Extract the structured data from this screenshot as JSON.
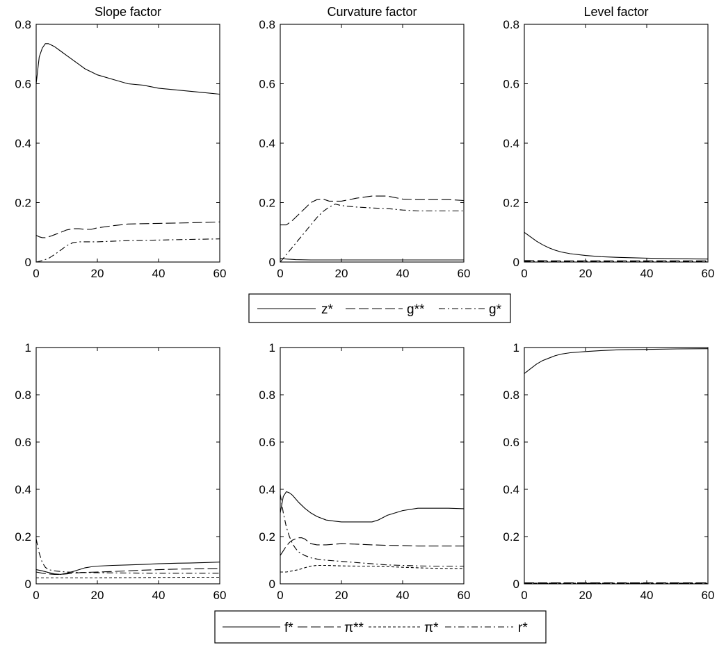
{
  "chart_data": [
    {
      "type": "line",
      "title": "Slope factor",
      "xlim": [
        0,
        60
      ],
      "ylim": [
        0,
        0.8
      ],
      "xticks": [
        "0",
        "20",
        "40",
        "60"
      ],
      "yticks": [
        "0",
        "0.2",
        "0.4",
        "0.6",
        "0.8"
      ],
      "grid": false,
      "series": [
        {
          "name": "z*",
          "dash": "solid",
          "x": [
            0,
            1,
            2,
            3,
            4,
            5,
            6,
            8,
            10,
            12,
            14,
            16,
            18,
            20,
            25,
            30,
            35,
            40,
            45,
            50,
            55,
            60
          ],
          "y": [
            0.6,
            0.69,
            0.72,
            0.735,
            0.735,
            0.73,
            0.725,
            0.71,
            0.695,
            0.68,
            0.665,
            0.65,
            0.64,
            0.63,
            0.615,
            0.6,
            0.595,
            0.585,
            0.58,
            0.575,
            0.57,
            0.565
          ]
        },
        {
          "name": "g**",
          "dash": "longdash",
          "x": [
            0,
            1,
            2,
            3,
            4,
            5,
            6,
            8,
            10,
            12,
            14,
            16,
            18,
            20,
            25,
            30,
            40,
            50,
            60
          ],
          "y": [
            0.09,
            0.085,
            0.082,
            0.082,
            0.085,
            0.088,
            0.092,
            0.1,
            0.108,
            0.112,
            0.112,
            0.11,
            0.11,
            0.115,
            0.122,
            0.128,
            0.13,
            0.132,
            0.135
          ]
        },
        {
          "name": "g*",
          "dash": "dashdot",
          "x": [
            0,
            2,
            4,
            6,
            8,
            10,
            12,
            14,
            20,
            30,
            40,
            50,
            60
          ],
          "y": [
            0.0,
            0.005,
            0.012,
            0.025,
            0.04,
            0.055,
            0.065,
            0.068,
            0.068,
            0.072,
            0.074,
            0.076,
            0.078
          ]
        }
      ]
    },
    {
      "type": "line",
      "title": "Curvature factor",
      "xlim": [
        0,
        60
      ],
      "ylim": [
        0,
        0.8
      ],
      "xticks": [
        "0",
        "20",
        "40",
        "60"
      ],
      "yticks": [
        "0",
        "0.2",
        "0.4",
        "0.6",
        "0.8"
      ],
      "grid": false,
      "series": [
        {
          "name": "z*",
          "dash": "solid",
          "x": [
            0,
            2,
            5,
            10,
            20,
            30,
            40,
            50,
            60
          ],
          "y": [
            0.012,
            0.01,
            0.008,
            0.007,
            0.007,
            0.007,
            0.007,
            0.007,
            0.007
          ]
        },
        {
          "name": "g**",
          "dash": "longdash",
          "x": [
            0,
            2,
            4,
            6,
            8,
            10,
            12,
            14,
            16,
            20,
            25,
            30,
            35,
            40,
            45,
            50,
            55,
            60
          ],
          "y": [
            0.125,
            0.125,
            0.14,
            0.16,
            0.18,
            0.2,
            0.21,
            0.212,
            0.205,
            0.205,
            0.215,
            0.222,
            0.222,
            0.212,
            0.21,
            0.21,
            0.21,
            0.207
          ]
        },
        {
          "name": "g*",
          "dash": "dashdot",
          "x": [
            0,
            2,
            4,
            6,
            8,
            10,
            12,
            14,
            16,
            18,
            20,
            25,
            30,
            35,
            40,
            45,
            50,
            55,
            60
          ],
          "y": [
            0.0,
            0.025,
            0.05,
            0.075,
            0.1,
            0.125,
            0.15,
            0.17,
            0.185,
            0.195,
            0.19,
            0.185,
            0.182,
            0.18,
            0.175,
            0.172,
            0.172,
            0.172,
            0.172
          ]
        }
      ]
    },
    {
      "type": "line",
      "title": "Level factor",
      "xlim": [
        0,
        60
      ],
      "ylim": [
        0,
        0.8
      ],
      "xticks": [
        "0",
        "20",
        "40",
        "60"
      ],
      "yticks": [
        "0",
        "0.2",
        "0.4",
        "0.6",
        "0.8"
      ],
      "grid": false,
      "series": [
        {
          "name": "z*",
          "dash": "solid",
          "x": [
            0,
            2,
            4,
            6,
            8,
            10,
            12,
            15,
            20,
            25,
            30,
            40,
            50,
            60
          ],
          "y": [
            0.1,
            0.085,
            0.07,
            0.058,
            0.048,
            0.04,
            0.034,
            0.028,
            0.022,
            0.018,
            0.016,
            0.013,
            0.011,
            0.01
          ]
        },
        {
          "name": "g**",
          "dash": "longdash",
          "x": [
            0,
            10,
            20,
            30,
            40,
            50,
            60
          ],
          "y": [
            0.005,
            0.004,
            0.004,
            0.004,
            0.004,
            0.004,
            0.004
          ]
        },
        {
          "name": "g*",
          "dash": "dashdot",
          "x": [
            0,
            10,
            20,
            30,
            40,
            50,
            60
          ],
          "y": [
            0.002,
            0.002,
            0.002,
            0.002,
            0.002,
            0.002,
            0.002
          ]
        }
      ]
    },
    {
      "type": "line",
      "title": "",
      "xlim": [
        0,
        60
      ],
      "ylim": [
        0,
        1
      ],
      "xticks": [
        "0",
        "20",
        "40",
        "60"
      ],
      "yticks": [
        "0",
        "0.2",
        "0.4",
        "0.6",
        "0.8",
        "1"
      ],
      "grid": false,
      "series": [
        {
          "name": "f*",
          "dash": "solid",
          "x": [
            0,
            2,
            4,
            6,
            8,
            10,
            12,
            14,
            16,
            18,
            20,
            25,
            30,
            35,
            40,
            45,
            50,
            55,
            60
          ],
          "y": [
            0.06,
            0.055,
            0.048,
            0.042,
            0.04,
            0.045,
            0.052,
            0.06,
            0.068,
            0.072,
            0.075,
            0.078,
            0.08,
            0.082,
            0.085,
            0.087,
            0.088,
            0.09,
            0.092
          ]
        },
        {
          "name": "π**",
          "dash": "longdash",
          "x": [
            0,
            2,
            4,
            6,
            8,
            10,
            12,
            15,
            20,
            25,
            30,
            35,
            40,
            45,
            50,
            55,
            60
          ],
          "y": [
            0.05,
            0.045,
            0.042,
            0.04,
            0.04,
            0.042,
            0.045,
            0.048,
            0.05,
            0.052,
            0.055,
            0.058,
            0.06,
            0.062,
            0.063,
            0.064,
            0.065
          ]
        },
        {
          "name": "π*",
          "dash": "shortdash",
          "x": [
            0,
            2,
            5,
            10,
            20,
            30,
            40,
            50,
            60
          ],
          "y": [
            0.025,
            0.025,
            0.025,
            0.025,
            0.025,
            0.026,
            0.027,
            0.028,
            0.028
          ]
        },
        {
          "name": "r*",
          "dash": "dashdot",
          "x": [
            0,
            1,
            2,
            3,
            4,
            6,
            8,
            10,
            15,
            20,
            30,
            40,
            50,
            60
          ],
          "y": [
            0.19,
            0.13,
            0.09,
            0.07,
            0.06,
            0.055,
            0.052,
            0.05,
            0.048,
            0.047,
            0.046,
            0.045,
            0.045,
            0.045
          ]
        }
      ]
    },
    {
      "type": "line",
      "title": "",
      "xlim": [
        0,
        60
      ],
      "ylim": [
        0,
        1
      ],
      "xticks": [
        "0",
        "20",
        "40",
        "60"
      ],
      "yticks": [
        "0",
        "0.2",
        "0.4",
        "0.6",
        "0.8",
        "1"
      ],
      "grid": false,
      "series": [
        {
          "name": "f*",
          "dash": "solid",
          "x": [
            0,
            1,
            2,
            3,
            4,
            5,
            6,
            8,
            10,
            12,
            15,
            18,
            20,
            25,
            30,
            32,
            35,
            40,
            45,
            50,
            55,
            60
          ],
          "y": [
            0.3,
            0.37,
            0.39,
            0.385,
            0.375,
            0.36,
            0.345,
            0.32,
            0.3,
            0.285,
            0.27,
            0.265,
            0.262,
            0.262,
            0.262,
            0.27,
            0.29,
            0.31,
            0.32,
            0.32,
            0.32,
            0.318
          ]
        },
        {
          "name": "π**",
          "dash": "longdash",
          "x": [
            0,
            1,
            2,
            3,
            4,
            5,
            6,
            7,
            8,
            10,
            12,
            15,
            20,
            25,
            30,
            35,
            40,
            45,
            50,
            55,
            60
          ],
          "y": [
            0.12,
            0.14,
            0.16,
            0.175,
            0.185,
            0.19,
            0.195,
            0.195,
            0.19,
            0.17,
            0.165,
            0.165,
            0.17,
            0.168,
            0.165,
            0.163,
            0.162,
            0.16,
            0.16,
            0.16,
            0.16
          ]
        },
        {
          "name": "π*",
          "dash": "shortdash",
          "x": [
            0,
            2,
            4,
            6,
            8,
            10,
            12,
            15,
            20,
            25,
            30,
            35,
            40,
            45,
            50,
            55,
            60
          ],
          "y": [
            0.05,
            0.05,
            0.055,
            0.06,
            0.068,
            0.075,
            0.078,
            0.078,
            0.076,
            0.075,
            0.075,
            0.073,
            0.07,
            0.068,
            0.066,
            0.065,
            0.065
          ]
        },
        {
          "name": "r*",
          "dash": "dashdot",
          "x": [
            0,
            1,
            2,
            3,
            4,
            5,
            6,
            8,
            10,
            12,
            15,
            20,
            25,
            30,
            35,
            40,
            45,
            50,
            55,
            60
          ],
          "y": [
            0.38,
            0.3,
            0.24,
            0.2,
            0.17,
            0.15,
            0.135,
            0.12,
            0.11,
            0.105,
            0.1,
            0.095,
            0.09,
            0.085,
            0.08,
            0.078,
            0.076,
            0.075,
            0.075,
            0.075
          ]
        }
      ]
    },
    {
      "type": "line",
      "title": "",
      "xlim": [
        0,
        60
      ],
      "ylim": [
        0,
        1
      ],
      "xticks": [
        "0",
        "20",
        "40",
        "60"
      ],
      "yticks": [
        "0",
        "0.2",
        "0.4",
        "0.6",
        "0.8",
        "1"
      ],
      "grid": false,
      "series": [
        {
          "name": "f*",
          "dash": "solid",
          "x": [
            0,
            2,
            4,
            6,
            8,
            10,
            12,
            15,
            20,
            25,
            30,
            40,
            50,
            60
          ],
          "y": [
            0.89,
            0.91,
            0.93,
            0.945,
            0.955,
            0.965,
            0.972,
            0.978,
            0.983,
            0.987,
            0.99,
            0.992,
            0.994,
            0.995
          ]
        },
        {
          "name": "π**",
          "dash": "longdash",
          "x": [
            0,
            20,
            40,
            60
          ],
          "y": [
            0.004,
            0.004,
            0.004,
            0.004
          ]
        },
        {
          "name": "π*",
          "dash": "shortdash",
          "x": [
            0,
            20,
            40,
            60
          ],
          "y": [
            0.003,
            0.003,
            0.003,
            0.003
          ]
        },
        {
          "name": "r*",
          "dash": "dashdot",
          "x": [
            0,
            20,
            40,
            60
          ],
          "y": [
            0.002,
            0.002,
            0.002,
            0.002
          ]
        }
      ]
    }
  ],
  "legend_top": {
    "entries": [
      "z*",
      "g**",
      "g*"
    ],
    "dashes": [
      "solid",
      "longdash",
      "dashdot"
    ]
  },
  "legend_bottom": {
    "entries": [
      "f*",
      "π**",
      "π*",
      "r*"
    ],
    "dashes": [
      "solid",
      "longdash",
      "shortdash",
      "dashdot"
    ]
  }
}
